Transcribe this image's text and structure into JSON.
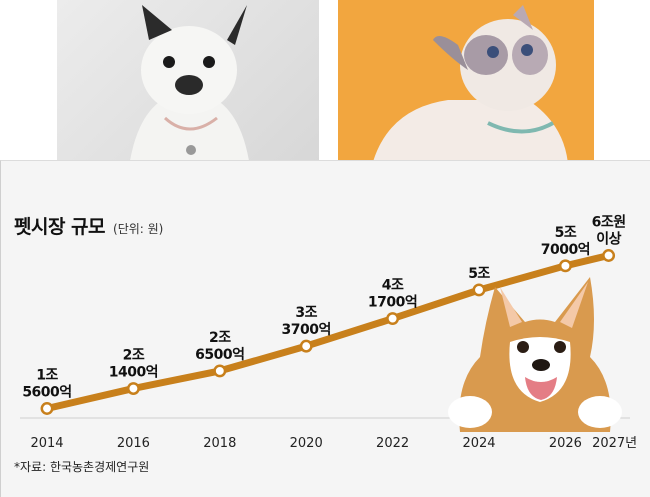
{
  "chart_data": {
    "type": "line",
    "title": "펫시장 규모",
    "subtitle": "(단위: 원)",
    "source": "*자료: 한국농촌경제연구원",
    "color": "#c8801c",
    "x": [
      2014,
      2016,
      2018,
      2020,
      2022,
      2024,
      2026,
      2027
    ],
    "x_tick_labels": [
      "2014",
      "2016",
      "2018",
      "2020",
      "2022",
      "2024",
      "2026",
      "2027년"
    ],
    "series": [
      {
        "values_eok": [
          15600,
          21400,
          26500,
          33700,
          41700,
          50000,
          57000,
          60000
        ],
        "data_labels": [
          [
            "1조",
            "5600억"
          ],
          [
            "2조",
            "1400억"
          ],
          [
            "2조",
            "6500억"
          ],
          [
            "3조",
            "3700억"
          ],
          [
            "4조",
            "1700억"
          ],
          [
            "5조"
          ],
          [
            "5조",
            "7000억"
          ],
          [
            "6조원",
            "이상"
          ]
        ]
      }
    ]
  }
}
